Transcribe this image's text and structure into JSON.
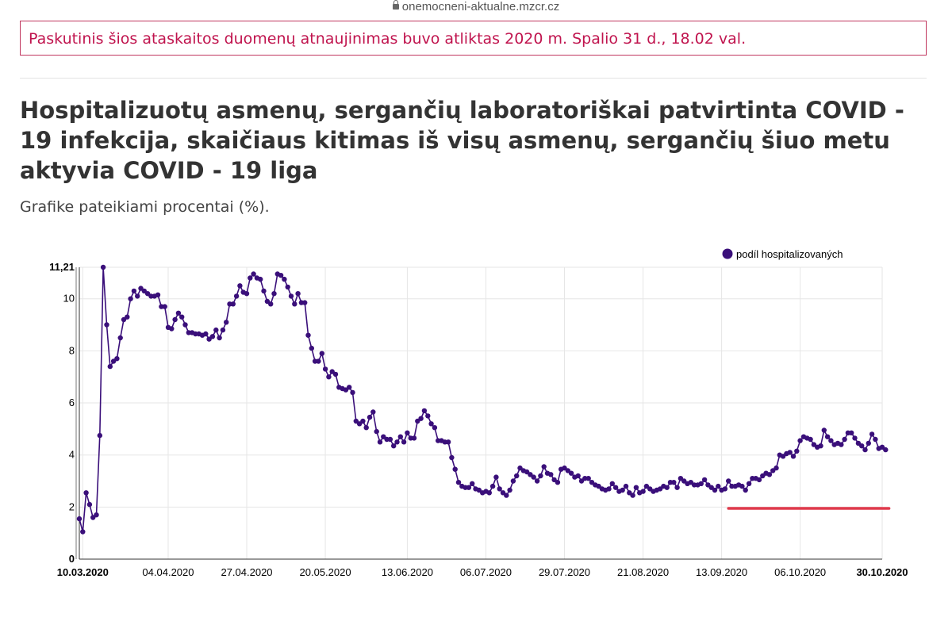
{
  "browser": {
    "url": "onemocneni-aktualne.mzcr.cz"
  },
  "notice": {
    "text": "Paskutinis šios ataskaitos duomenų atnaujinimas buvo atliktas 2020 m. Spalio 31 d., 18.02 val."
  },
  "page": {
    "title": "Hospitalizuotų asmenų, sergančių laboratoriškai patvirtinta COVID - 19 infekcija, skaičiaus kitimas iš visų asmenų, sergančių šiuo metu aktyvia COVID - 19 liga",
    "subtitle": "Grafike pateikiami procentai (%)."
  },
  "colors": {
    "series": "#3a0f7a",
    "annotation_line": "#e03a4c",
    "notice": "#c0144e"
  },
  "chart_data": {
    "type": "line",
    "title": "",
    "xlabel": "",
    "ylabel": "",
    "x_ticks": [
      "10.03.2020",
      "04.04.2020",
      "27.04.2020",
      "20.05.2020",
      "13.06.2020",
      "06.07.2020",
      "29.07.2020",
      "21.08.2020",
      "13.09.2020",
      "06.10.2020",
      "30.10.2020"
    ],
    "x_ticks_bold": [
      "10.03.2020",
      "30.10.2020"
    ],
    "y_ticks": [
      "0",
      "2",
      "4",
      "6",
      "8",
      "10",
      "11,21"
    ],
    "y_tick_values": [
      0,
      2,
      4,
      6,
      8,
      10,
      11.21
    ],
    "y_ticks_bold": [
      "0",
      "11,21"
    ],
    "ylim": [
      0,
      11.21
    ],
    "xlim": [
      "2020-03-09",
      "2020-10-30"
    ],
    "grid": true,
    "legend": {
      "position": "top-right",
      "entries": [
        "podíl hospitalizovaných"
      ]
    },
    "series": [
      {
        "name": "podíl hospitalizovaných",
        "start_date": "2020-03-09",
        "values": [
          1.55,
          1.05,
          2.55,
          2.1,
          1.6,
          1.7,
          4.75,
          11.21,
          9.0,
          7.4,
          7.6,
          7.7,
          8.5,
          9.2,
          9.3,
          10.0,
          10.3,
          10.1,
          10.4,
          10.3,
          10.2,
          10.1,
          10.1,
          10.15,
          9.7,
          9.7,
          8.9,
          8.85,
          9.2,
          9.45,
          9.3,
          9.0,
          8.7,
          8.7,
          8.65,
          8.65,
          8.6,
          8.65,
          8.45,
          8.55,
          8.8,
          8.5,
          8.8,
          9.1,
          9.8,
          9.8,
          10.1,
          10.5,
          10.25,
          10.2,
          10.8,
          10.95,
          10.8,
          10.75,
          10.3,
          9.9,
          9.8,
          10.2,
          10.95,
          10.9,
          10.75,
          10.45,
          10.1,
          9.8,
          10.2,
          9.85,
          9.85,
          8.6,
          8.1,
          7.6,
          7.6,
          7.9,
          7.3,
          7.0,
          7.2,
          7.1,
          6.6,
          6.55,
          6.5,
          6.6,
          6.4,
          5.3,
          5.2,
          5.3,
          5.05,
          5.45,
          5.65,
          4.9,
          4.5,
          4.7,
          4.6,
          4.6,
          4.35,
          4.5,
          4.7,
          4.5,
          4.85,
          4.65,
          4.65,
          5.3,
          5.4,
          5.7,
          5.5,
          5.2,
          5.05,
          4.55,
          4.55,
          4.5,
          4.5,
          3.9,
          3.45,
          2.95,
          2.8,
          2.75,
          2.75,
          2.9,
          2.7,
          2.65,
          2.55,
          2.6,
          2.55,
          2.8,
          3.15,
          2.7,
          2.55,
          2.45,
          2.65,
          3.0,
          3.2,
          3.5,
          3.4,
          3.35,
          3.25,
          3.15,
          3.0,
          3.2,
          3.55,
          3.3,
          3.25,
          3.05,
          2.95,
          3.45,
          3.5,
          3.4,
          3.3,
          3.15,
          3.2,
          3.0,
          3.1,
          3.1,
          2.95,
          2.85,
          2.8,
          2.7,
          2.65,
          2.7,
          2.9,
          2.75,
          2.6,
          2.65,
          2.8,
          2.55,
          2.45,
          2.75,
          2.55,
          2.6,
          2.8,
          2.7,
          2.6,
          2.65,
          2.7,
          2.8,
          2.75,
          2.95,
          2.95,
          2.75,
          3.1,
          3.0,
          2.9,
          2.95,
          2.85,
          2.85,
          2.9,
          3.05,
          2.85,
          2.75,
          2.65,
          2.8,
          2.65,
          2.7,
          3.0,
          2.8,
          2.8,
          2.85,
          2.8,
          2.65,
          2.9,
          3.1,
          3.1,
          3.05,
          3.2,
          3.3,
          3.25,
          3.4,
          3.5,
          4.0,
          3.95,
          4.05,
          4.1,
          3.95,
          4.15,
          4.55,
          4.7,
          4.65,
          4.6,
          4.4,
          4.3,
          4.35,
          4.95,
          4.7,
          4.55,
          4.4,
          4.45,
          4.4,
          4.6,
          4.85,
          4.85,
          4.65,
          4.45,
          4.35,
          4.2,
          4.45,
          4.8,
          4.6,
          4.25,
          4.3,
          4.2
        ]
      }
    ],
    "annotations": [
      {
        "type": "hline",
        "y": 1.95,
        "x_start": "2020-09-15",
        "x_end": "2020-11-01",
        "color": "#e03a4c"
      }
    ]
  }
}
